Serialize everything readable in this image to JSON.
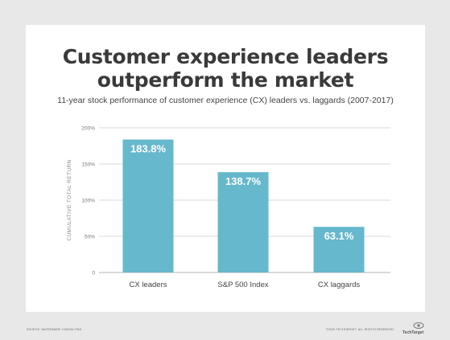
{
  "title_line1": "Customer experience leaders",
  "title_line2": "outperform the market",
  "subtitle": "11-year stock performance of customer experience (CX) leaders vs. laggards (2007-2017)",
  "footer_source": "SOURCE: WATERMARK CONSULTING",
  "footer_copyright": "©2020 TECHTARGET. ALL RIGHTS RESERVED",
  "logo_text": "TechTarget",
  "colors": {
    "bar": "#66b8cc",
    "grid": "#d9d9d9",
    "text": "#3a3a3a"
  },
  "chart_data": {
    "type": "bar",
    "categories": [
      "CX leaders",
      "S&P 500 Index",
      "CX laggards"
    ],
    "values": [
      183.8,
      138.7,
      63.1
    ],
    "value_labels": [
      "183.8%",
      "138.7%",
      "63.1%"
    ],
    "title": "Customer experience leaders outperform the market",
    "subtitle": "11-year stock performance of customer experience (CX) leaders vs. laggards (2007-2017)",
    "xlabel": "",
    "ylabel": "CUMULATIVE TOTAL RETURN",
    "ylim": [
      0,
      200
    ],
    "yticks": [
      0,
      50,
      100,
      150,
      200
    ],
    "ytick_labels": [
      "0",
      "50%",
      "100%",
      "150%",
      "200%"
    ],
    "grid": true,
    "legend": "none"
  }
}
